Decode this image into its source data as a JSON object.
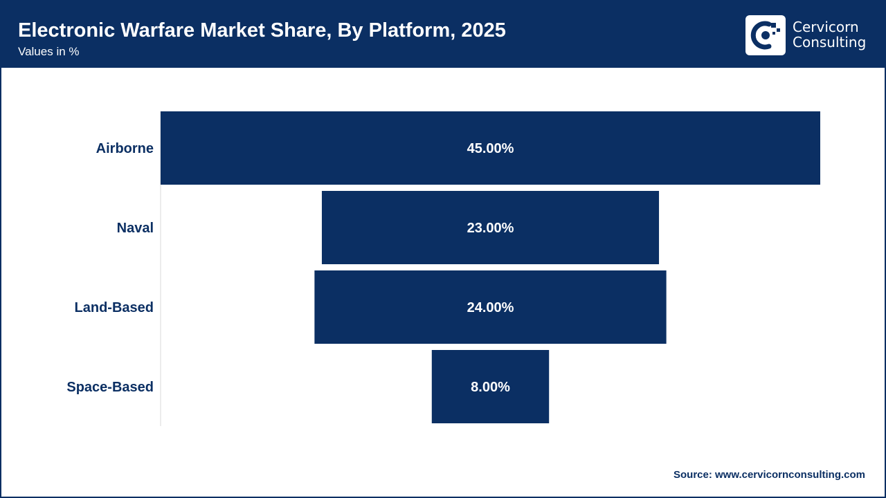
{
  "header": {
    "title": "Electronic Warfare Market Share, By Platform, 2025",
    "subtitle": "Values in %"
  },
  "logo": {
    "line1": "Cervicorn",
    "line2": "Consulting",
    "icon": "cervicorn-logo-icon"
  },
  "colors": {
    "brand": "#0b2f63",
    "bar": "#0b2f63",
    "label": "#0b2f63",
    "background": "#ffffff",
    "axis": "#d9d9d9"
  },
  "chart_data": {
    "type": "bar",
    "orientation": "horizontal",
    "style": "funnel",
    "categories": [
      "Airborne",
      "Naval",
      "Land-Based",
      "Space-Based"
    ],
    "values": [
      45,
      23,
      24,
      8
    ],
    "data_labels": [
      "45.00%",
      "23.00%",
      "24.00%",
      "8.00%"
    ],
    "unit": "%",
    "title": "Electronic Warfare Market Share, By Platform, 2025",
    "subtitle": "Values in %",
    "xlim": [
      0,
      45
    ],
    "grid": false,
    "legend": "none"
  },
  "footer": {
    "source": "Source: www.cervicornconsulting.com"
  }
}
